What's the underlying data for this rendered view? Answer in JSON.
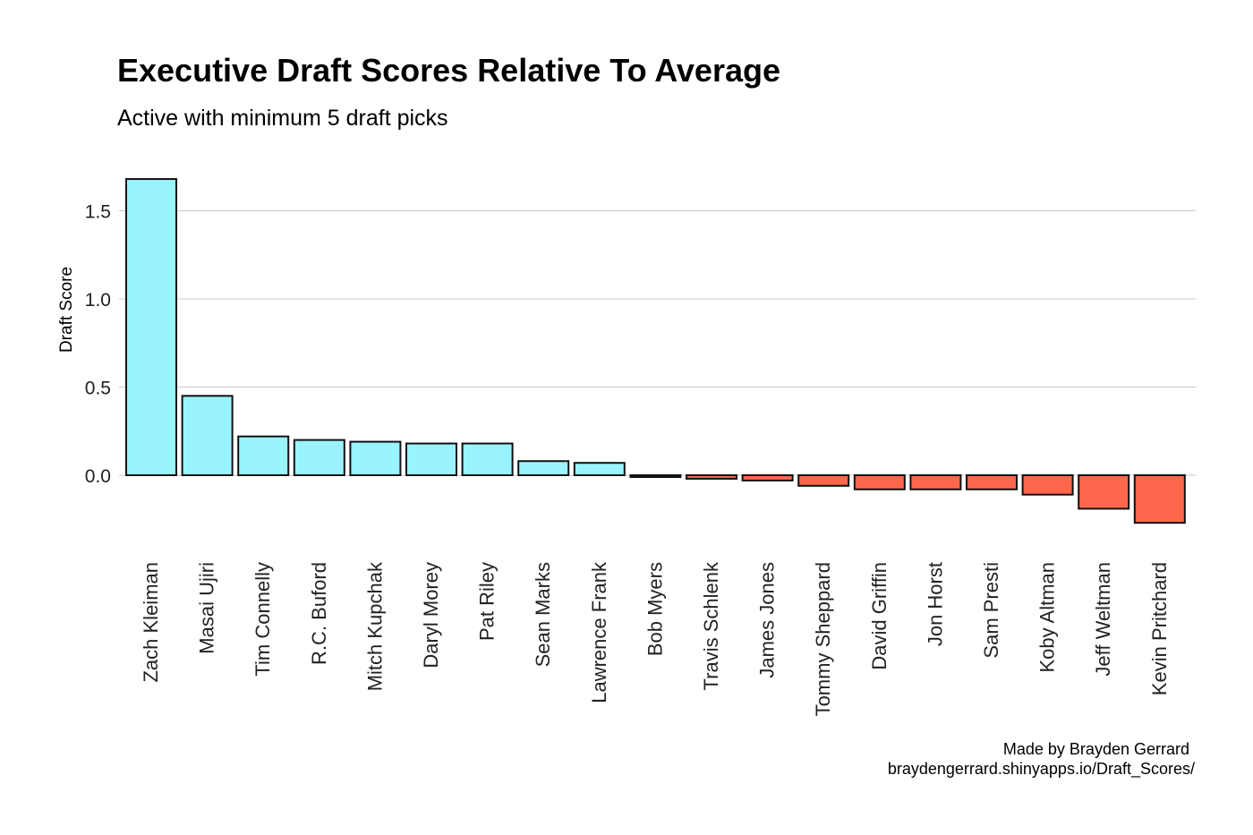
{
  "chart_data": {
    "type": "bar",
    "title": "Executive Draft Scores Relative To Average",
    "subtitle": "Active with minimum 5 draft picks",
    "xlabel": "",
    "ylabel": "Draft Score",
    "ylim": [
      -0.3,
      1.7
    ],
    "yticks": [
      {
        "value": 0.0,
        "label": "0.0"
      },
      {
        "value": 0.5,
        "label": "0.5"
      },
      {
        "value": 1.0,
        "label": "1.0"
      },
      {
        "value": 1.5,
        "label": "1.5"
      }
    ],
    "grid": true,
    "categories": [
      "Zach Kleiman",
      "Masai Ujiri",
      "Tim Connelly",
      "R.C. Buford",
      "Mitch Kupchak",
      "Daryl Morey",
      "Pat Riley",
      "Sean Marks",
      "Lawrence Frank",
      "Bob Myers",
      "Travis Schlenk",
      "James Jones",
      "Tommy Sheppard",
      "David Griffin",
      "Jon Horst",
      "Sam Presti",
      "Koby Altman",
      "Jeff Weltman",
      "Kevin Pritchard"
    ],
    "values": [
      1.68,
      0.45,
      0.22,
      0.2,
      0.19,
      0.18,
      0.18,
      0.08,
      0.07,
      -0.01,
      -0.02,
      -0.03,
      -0.06,
      -0.08,
      -0.08,
      -0.08,
      -0.11,
      -0.19,
      -0.27
    ],
    "colors": {
      "positive": "#99F4FF",
      "negative": "#FF674D",
      "outline": "#111111"
    }
  },
  "caption": {
    "line1": "Made by Brayden Gerrard",
    "line2": "braydengerrard.shinyapps.io/Draft_Scores/"
  }
}
